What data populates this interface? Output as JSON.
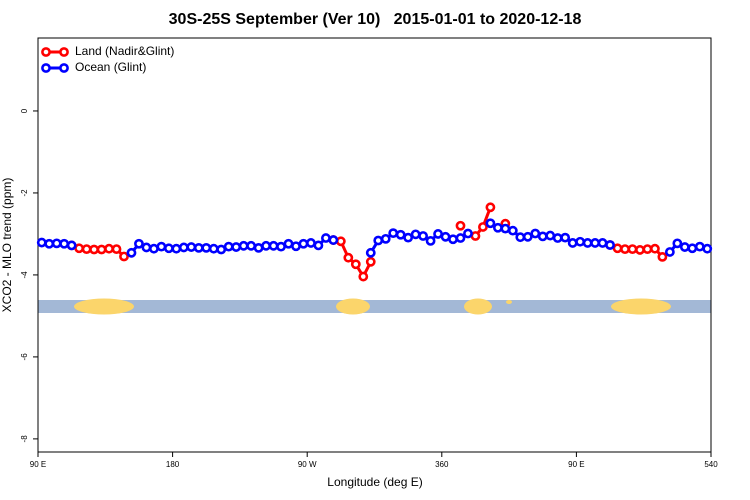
{
  "chart_data": {
    "type": "line",
    "title": "30S-25S September (Ver 10)   2015-01-01 to 2020-12-18",
    "xlabel": "Longitude (deg E)",
    "ylabel": "XCO2 - MLO trend (ppm)",
    "x": [
      92.5,
      97.5,
      102.5,
      107.5,
      112.5,
      117.5,
      122.5,
      127.5,
      132.5,
      137.5,
      142.5,
      147.5,
      152.5,
      157.5,
      162.5,
      167.5,
      172.5,
      177.5,
      182.5,
      187.5,
      192.5,
      197.5,
      202.5,
      207.5,
      212.5,
      217.5,
      222.5,
      227.5,
      232.5,
      237.5,
      242.5,
      247.5,
      252.5,
      257.5,
      262.5,
      267.5,
      272.5,
      277.5,
      282.5,
      287.5,
      292.5,
      297.5,
      302.5,
      307.5,
      312.5,
      317.5,
      322.5,
      327.5,
      332.5,
      337.5,
      342.5,
      347.5,
      352.5,
      357.5,
      362.5,
      367.5,
      372.5,
      377.5,
      382.5,
      387.5,
      392.5,
      397.5,
      402.5,
      407.5,
      412.5,
      417.5,
      422.5,
      427.5,
      432.5,
      437.5,
      442.5,
      447.5,
      452.5,
      457.5,
      462.5,
      467.5,
      472.5,
      477.5,
      482.5,
      487.5,
      492.5,
      497.5,
      502.5,
      507.5,
      512.5,
      517.5,
      522.5,
      527.5,
      532.5,
      537.5
    ],
    "series": [
      {
        "name": "Land (Nadir&Glint)",
        "color": "#ff0000",
        "values": [
          null,
          null,
          null,
          null,
          -3.28,
          -3.35,
          -3.37,
          -3.38,
          -3.38,
          -3.36,
          -3.37,
          -3.55,
          null,
          null,
          null,
          null,
          null,
          null,
          null,
          null,
          null,
          null,
          null,
          null,
          null,
          null,
          null,
          null,
          null,
          null,
          null,
          null,
          null,
          null,
          null,
          null,
          null,
          null,
          null,
          -3.15,
          -3.18,
          -3.58,
          -3.74,
          -4.04,
          -3.68,
          null,
          null,
          null,
          null,
          null,
          null,
          null,
          null,
          null,
          null,
          null,
          -2.8,
          null,
          -3.05,
          -2.83,
          -2.35,
          null,
          -2.75,
          null,
          null,
          null,
          null,
          null,
          null,
          null,
          null,
          null,
          null,
          null,
          null,
          null,
          -3.27,
          -3.35,
          -3.37,
          -3.37,
          -3.39,
          -3.37,
          -3.36,
          -3.56,
          null,
          null,
          null,
          null,
          null,
          null
        ]
      },
      {
        "name": "Ocean (Glint)",
        "color": "#0000ff",
        "values": [
          -3.21,
          -3.24,
          -3.23,
          -3.24,
          -3.28,
          null,
          null,
          null,
          null,
          null,
          null,
          null,
          -3.46,
          -3.24,
          -3.33,
          -3.36,
          -3.31,
          -3.35,
          -3.36,
          -3.33,
          -3.32,
          -3.34,
          -3.34,
          -3.36,
          -3.38,
          -3.31,
          -3.32,
          -3.29,
          -3.29,
          -3.34,
          -3.29,
          -3.29,
          -3.31,
          -3.24,
          -3.3,
          -3.24,
          -3.22,
          -3.28,
          -3.1,
          -3.15,
          null,
          null,
          null,
          null,
          -3.46,
          -3.16,
          -3.12,
          -2.98,
          -3.02,
          -3.09,
          -3.01,
          -3.05,
          -3.17,
          -3.0,
          -3.07,
          -3.13,
          -3.1,
          -2.99,
          null,
          null,
          -2.74,
          -2.85,
          -2.87,
          -2.92,
          -3.08,
          -3.07,
          -2.99,
          -3.06,
          -3.04,
          -3.1,
          -3.09,
          -3.22,
          -3.19,
          -3.22,
          -3.22,
          -3.22,
          -3.27,
          null,
          null,
          null,
          null,
          null,
          null,
          null,
          -3.44,
          -3.23,
          -3.32,
          -3.35,
          -3.31,
          -3.36
        ]
      }
    ],
    "xlim": [
      90,
      540
    ],
    "xticks": [
      {
        "value": 90,
        "label": "90 E"
      },
      180,
      {
        "value": 270,
        "label": "90 W"
      },
      360,
      {
        "value": 450,
        "label": "90 E"
      },
      540
    ],
    "ylim": [
      -8.32,
      1.78
    ],
    "yticks": [
      0,
      -2,
      -4,
      -6,
      -8
    ],
    "legend": "top-left"
  }
}
